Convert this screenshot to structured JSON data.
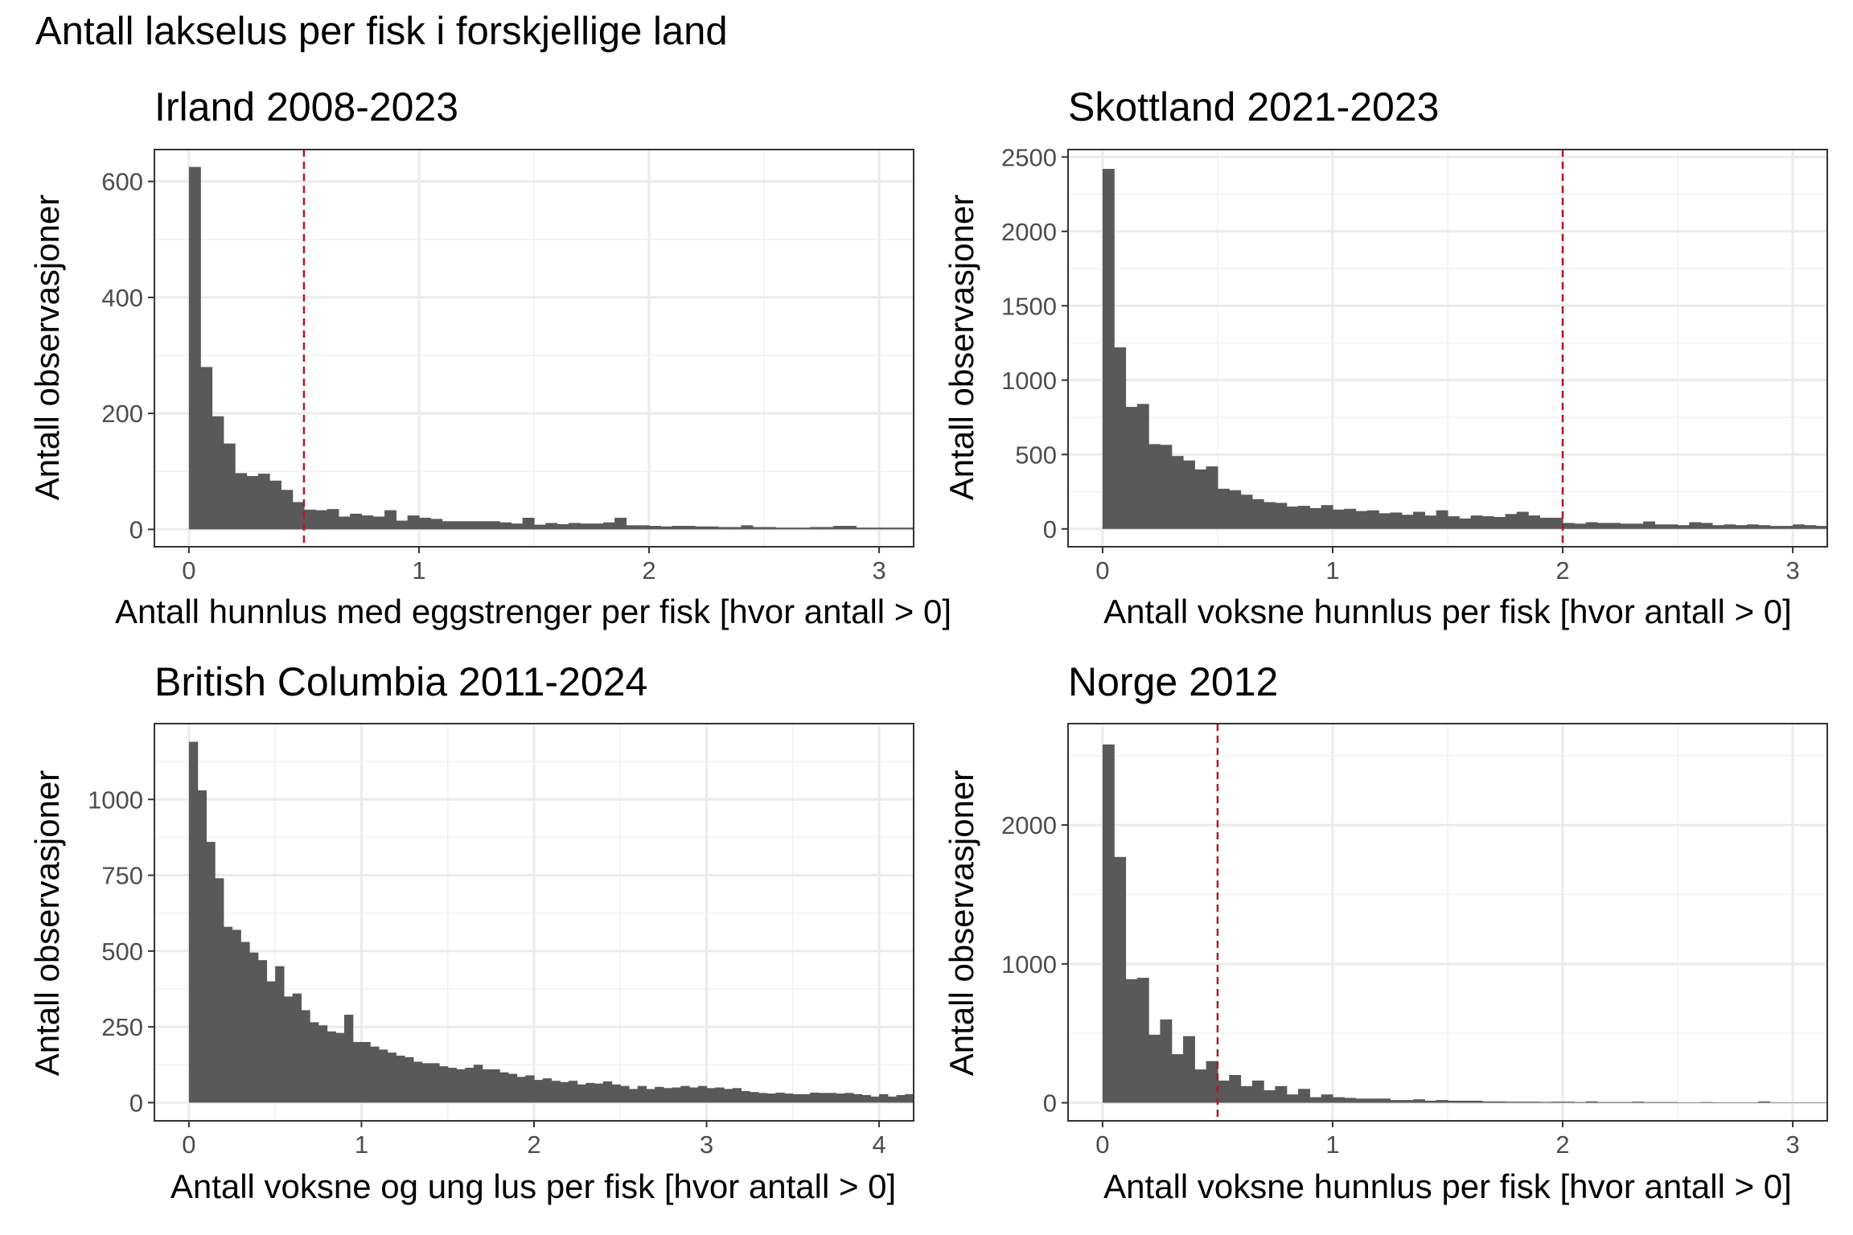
{
  "title": "Antall lakselus per fisk i forskjellige land",
  "chart_data": [
    {
      "type": "bar",
      "title": "Irland 2008-2023",
      "xlabel": "Antall hunnlus med eggstrenger per fisk [hvor antall > 0]",
      "ylabel": "Antall observasjoner",
      "xlim": [
        -0.15,
        3.15
      ],
      "ylim": [
        -30,
        655
      ],
      "xticks": [
        0,
        1,
        2,
        3
      ],
      "yticks": [
        0,
        200,
        400,
        600
      ],
      "bin_width": 0.05,
      "bin_start": 0,
      "values": [
        625,
        280,
        195,
        148,
        97,
        92,
        96,
        84,
        68,
        47,
        34,
        33,
        35,
        22,
        27,
        24,
        22,
        33,
        15,
        24,
        20,
        18,
        14,
        14,
        14,
        14,
        14,
        12,
        10,
        20,
        8,
        11,
        9,
        11,
        10,
        10,
        12,
        20,
        7,
        7,
        6,
        5,
        6,
        6,
        5,
        5,
        4,
        4,
        7,
        4,
        4,
        3,
        3,
        3,
        4,
        4,
        6,
        6,
        3,
        3,
        3,
        3,
        3,
        3,
        3
      ],
      "reference_line_x": 0.5
    },
    {
      "type": "bar",
      "title": "Skottland 2021-2023",
      "xlabel": "Antall voksne hunnlus per fisk [hvor antall > 0]",
      "ylabel": "Antall observasjoner",
      "xlim": [
        -0.15,
        3.15
      ],
      "ylim": [
        -120,
        2550
      ],
      "xticks": [
        0,
        1,
        2,
        3
      ],
      "yticks": [
        0,
        500,
        1000,
        1500,
        2000,
        2500
      ],
      "bin_width": 0.05,
      "bin_start": 0,
      "values": [
        2420,
        1220,
        820,
        840,
        570,
        565,
        490,
        460,
        400,
        420,
        270,
        260,
        230,
        200,
        180,
        175,
        150,
        155,
        140,
        160,
        130,
        135,
        120,
        125,
        105,
        110,
        95,
        115,
        90,
        125,
        85,
        70,
        90,
        85,
        80,
        100,
        115,
        90,
        75,
        75,
        40,
        35,
        45,
        40,
        40,
        35,
        35,
        50,
        30,
        30,
        25,
        45,
        40,
        25,
        30,
        25,
        30,
        25,
        20,
        20,
        30,
        25,
        20,
        15,
        10
      ],
      "reference_line_x": 2
    },
    {
      "type": "bar",
      "title": "British Columbia 2011-2024",
      "xlabel": "Antall voksne og ung lus per fisk [hvor antall > 0]",
      "ylabel": "Antall observasjoner",
      "xlim": [
        -0.2,
        4.2
      ],
      "ylim": [
        -60,
        1250
      ],
      "xticks": [
        0,
        1,
        2,
        3,
        4
      ],
      "yticks": [
        0,
        250,
        500,
        750,
        1000
      ],
      "bin_width": 0.05,
      "bin_start": 0,
      "values": [
        1190,
        1030,
        860,
        740,
        580,
        570,
        530,
        495,
        470,
        400,
        450,
        350,
        360,
        305,
        265,
        255,
        235,
        230,
        290,
        200,
        200,
        185,
        175,
        165,
        155,
        150,
        135,
        130,
        130,
        120,
        115,
        110,
        115,
        125,
        110,
        110,
        100,
        95,
        85,
        90,
        75,
        80,
        72,
        68,
        72,
        60,
        65,
        63,
        70,
        60,
        55,
        45,
        55,
        45,
        52,
        48,
        50,
        55,
        50,
        55,
        48,
        50,
        45,
        48,
        38,
        35,
        32,
        30,
        33,
        30,
        28,
        28,
        33,
        32,
        32,
        30,
        32,
        28,
        25,
        20,
        28,
        20,
        25,
        28,
        20,
        22,
        20,
        20,
        30
      ]
    },
    {
      "type": "bar",
      "title": "Norge 2012",
      "xlabel": "Antall voksne hunnlus per fisk [hvor antall > 0]",
      "ylabel": "Antall observasjoner",
      "xlim": [
        -0.15,
        3.15
      ],
      "ylim": [
        -130,
        2730
      ],
      "xticks": [
        0,
        1,
        2,
        3
      ],
      "yticks": [
        0,
        1000,
        2000
      ],
      "bin_width": 0.05,
      "bin_start": 0,
      "values": [
        2580,
        1770,
        890,
        900,
        490,
        600,
        350,
        480,
        240,
        300,
        160,
        200,
        120,
        160,
        90,
        120,
        60,
        100,
        40,
        60,
        40,
        35,
        30,
        30,
        30,
        20,
        20,
        25,
        15,
        20,
        15,
        15,
        15,
        10,
        10,
        8,
        8,
        8,
        6,
        8,
        8,
        5,
        10,
        5,
        5,
        5,
        8,
        5,
        5,
        5,
        3,
        3,
        5,
        3,
        3,
        3,
        3,
        10,
        3,
        3,
        3,
        3,
        3
      ],
      "reference_line_x": 0.5
    }
  ]
}
